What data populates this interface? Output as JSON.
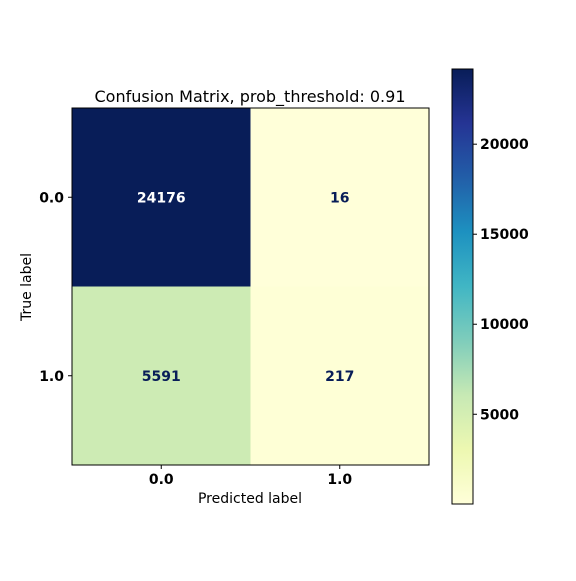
{
  "chart_data": {
    "type": "heatmap",
    "title": "Confusion Matrix, prob_threshold: 0.91",
    "xlabel": "Predicted label",
    "ylabel": "True label",
    "x_categories": [
      "0.0",
      "1.0"
    ],
    "y_categories": [
      "0.0",
      "1.0"
    ],
    "matrix": [
      [
        24176,
        16
      ],
      [
        5591,
        217
      ]
    ],
    "colormap": "YlGnBu",
    "colorbar": {
      "range": [
        16,
        24176
      ],
      "ticks": [
        5000,
        10000,
        15000,
        20000
      ],
      "tick_labels": [
        "5000",
        "10000",
        "15000",
        "20000"
      ]
    },
    "grid": false
  }
}
